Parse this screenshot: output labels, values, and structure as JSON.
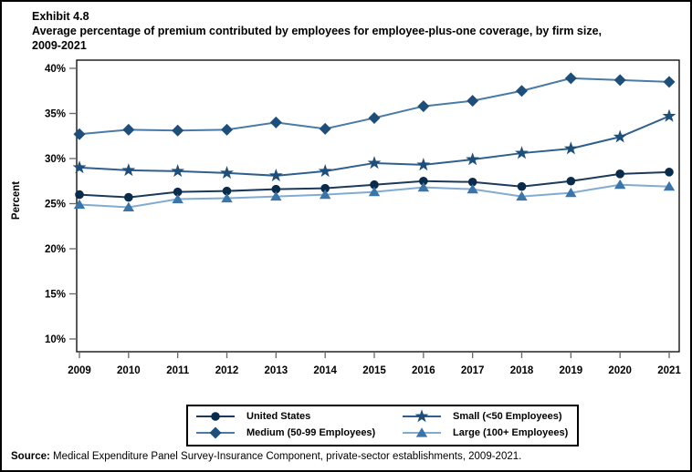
{
  "header": {
    "exhibit_label": "Exhibit 4.8",
    "title_line1": "Average percentage of premium contributed by employees for employee-plus-one coverage, by firm size,",
    "title_line2": "2009-2021"
  },
  "footer": {
    "source_label": "Source:",
    "source_text": " Medical Expenditure Panel Survey-Insurance Component, private-sector establishments, 2009-2021."
  },
  "chart_data": {
    "type": "line",
    "title": "Average percentage of premium contributed by employees for employee-plus-one coverage, by firm size, 2009-2021",
    "xlabel": "",
    "ylabel": "Percent",
    "ylim": [
      10,
      40
    ],
    "yticks": [
      40,
      35,
      30,
      25,
      20,
      15,
      10
    ],
    "ytick_labels": [
      "40%",
      "35%",
      "30%",
      "25%",
      "20%",
      "15%",
      "10%"
    ],
    "x": [
      2009,
      2010,
      2011,
      2012,
      2013,
      2014,
      2015,
      2016,
      2017,
      2018,
      2019,
      2020,
      2021
    ],
    "xtick_labels": [
      "2009",
      "2010",
      "2011",
      "2012",
      "2013",
      "2014",
      "2015",
      "2016",
      "2017",
      "2018",
      "2019",
      "2020",
      "2021"
    ],
    "grid": false,
    "legend_position": "bottom-center",
    "legend_rows": [
      [
        0,
        2
      ],
      [
        1,
        3
      ]
    ],
    "series": [
      {
        "name": "United States",
        "marker": "circle",
        "marker_color": "#0b2b4b",
        "line_color": "#1b3a5a",
        "values": [
          26.0,
          25.7,
          26.3,
          26.4,
          26.6,
          26.7,
          27.1,
          27.5,
          27.4,
          26.9,
          27.5,
          28.3,
          28.5
        ]
      },
      {
        "name": "Medium (50-99 Employees)",
        "marker": "diamond",
        "marker_color": "#1f4e79",
        "line_color": "#4a7aa6",
        "values": [
          32.7,
          33.2,
          33.1,
          33.2,
          34.0,
          33.3,
          34.5,
          35.8,
          36.4,
          37.5,
          38.9,
          38.7,
          38.5
        ]
      },
      {
        "name": "Small (<50 Employees)",
        "marker": "star",
        "marker_color": "#1f4e79",
        "line_color": "#2f5f8f",
        "values": [
          29.0,
          28.7,
          28.6,
          28.4,
          28.1,
          28.6,
          29.5,
          29.3,
          29.9,
          30.6,
          31.1,
          32.4,
          34.7
        ]
      },
      {
        "name": "Large (100+ Employees)",
        "marker": "triangle",
        "marker_color": "#3c74a8",
        "line_color": "#82abd2",
        "values": [
          24.9,
          24.6,
          25.5,
          25.6,
          25.8,
          26.0,
          26.3,
          26.8,
          26.6,
          25.8,
          26.2,
          27.1,
          26.9
        ]
      }
    ]
  }
}
